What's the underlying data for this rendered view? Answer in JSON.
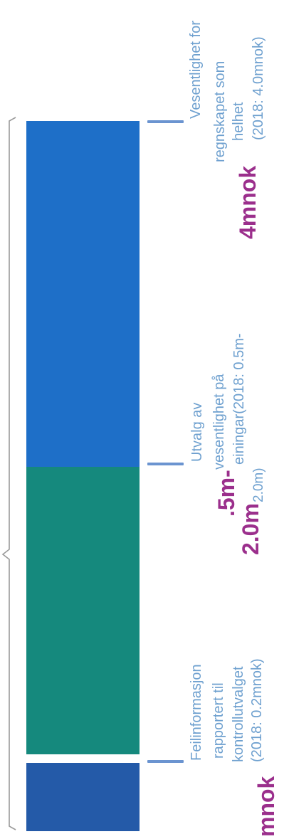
{
  "colors": {
    "segment_top": "#1e6fc8",
    "segment_middle": "#15897d",
    "segment_bottom": "#245aa8",
    "tick": "#6b94d0",
    "bracket": "#9a9a9a",
    "text_light": "#6ea0cf",
    "highlight": "#9b2f8c"
  },
  "labels": {
    "top": {
      "amount": "4mnok",
      "lines": [
        "Vesentlighet for",
        "regnskapet som",
        "helhet",
        "(2018: 4.0mnok)"
      ]
    },
    "middle": {
      "amount_part1": ".5m-",
      "amount_part2": "2.0m",
      "lines": [
        "Utvalg av",
        "vesentlighet på",
        "einingar(2018: 0.5m-"
      ],
      "last_tail": "2.0m)"
    },
    "bottom": {
      "amount": "mnok",
      "lines": [
        "Feilinformasjon",
        "rapportert til",
        "kontrollutvalget",
        "(2018: 0.2mnok)"
      ]
    }
  }
}
